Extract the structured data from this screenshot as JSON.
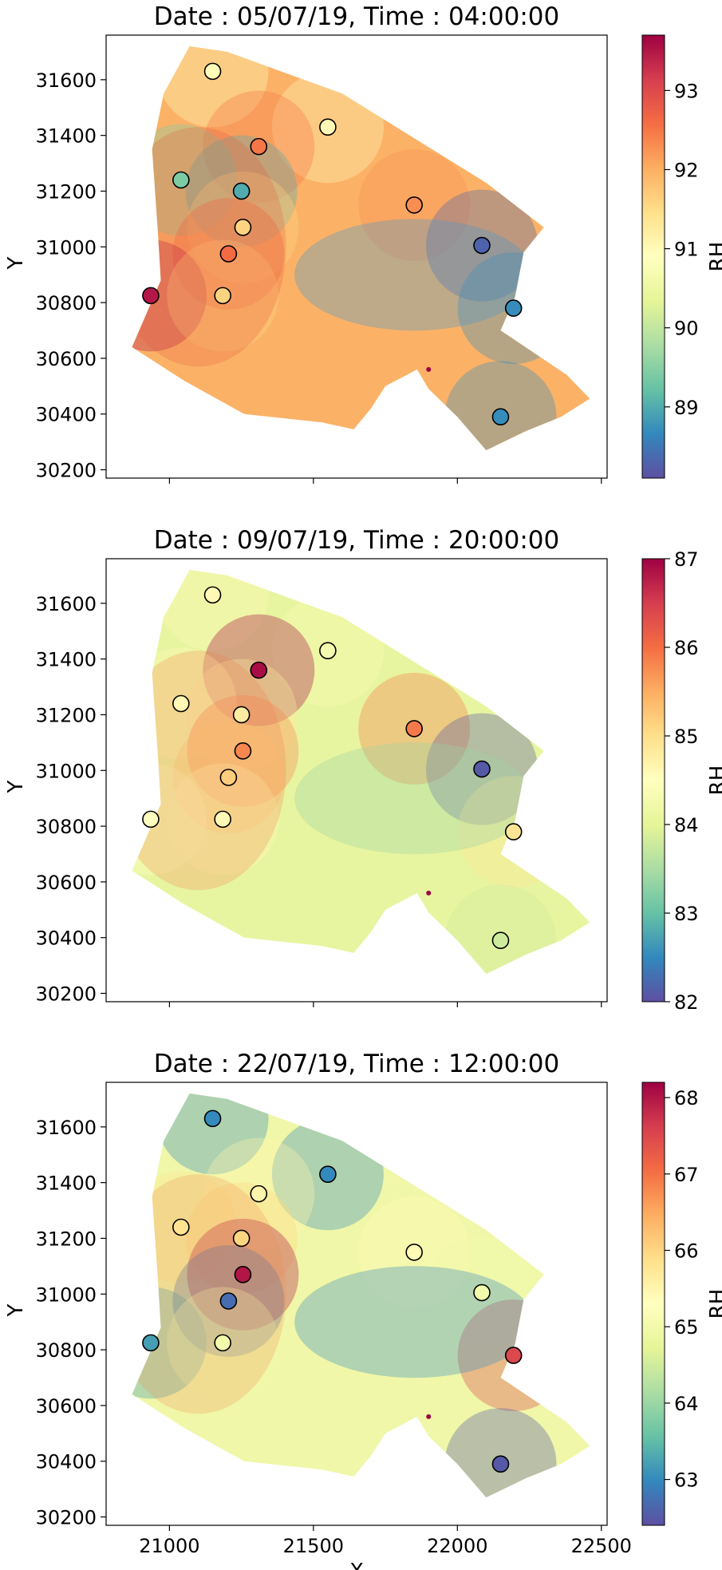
{
  "chart_data": [
    {
      "type": "heatmap",
      "title": "Date : 05/07/19, Time : 04:00:00",
      "xlabel": "",
      "ylabel": "Y",
      "colorbar_label": "RH",
      "xlim": [
        20780,
        22520
      ],
      "ylim": [
        30170,
        31760
      ],
      "xticks": [
        21000,
        21500,
        22000,
        22500
      ],
      "xticklabels_shown": false,
      "yticks": [
        30200,
        30400,
        30600,
        30800,
        31000,
        31200,
        31400,
        31600
      ],
      "clim": [
        88.1,
        93.7
      ],
      "cticks": [
        89,
        90,
        91,
        92,
        93
      ],
      "field_colors": {
        "low_region": "#4e97c9",
        "high_region": "#e8593c",
        "base": "#fbb267"
      },
      "points": [
        {
          "x": 21150,
          "y": 31630,
          "v": 90.8
        },
        {
          "x": 21550,
          "y": 31430,
          "v": 91.0
        },
        {
          "x": 21310,
          "y": 31360,
          "v": 92.5
        },
        {
          "x": 21040,
          "y": 31240,
          "v": 89.4
        },
        {
          "x": 21250,
          "y": 31200,
          "v": 89.0
        },
        {
          "x": 21850,
          "y": 31150,
          "v": 92.3
        },
        {
          "x": 21255,
          "y": 31070,
          "v": 91.6
        },
        {
          "x": 21205,
          "y": 30975,
          "v": 92.6
        },
        {
          "x": 22085,
          "y": 31005,
          "v": 88.3
        },
        {
          "x": 20935,
          "y": 30825,
          "v": 93.5
        },
        {
          "x": 21185,
          "y": 30825,
          "v": 91.6
        },
        {
          "x": 22195,
          "y": 30780,
          "v": 88.7
        },
        {
          "x": 22150,
          "y": 30390,
          "v": 88.7
        }
      ]
    },
    {
      "type": "heatmap",
      "title": "Date : 09/07/19, Time : 20:00:00",
      "xlabel": "",
      "ylabel": "Y",
      "colorbar_label": "RH",
      "xlim": [
        20780,
        22520
      ],
      "ylim": [
        30170,
        31760
      ],
      "xticks": [
        21000,
        21500,
        22000,
        22500
      ],
      "xticklabels_shown": false,
      "yticks": [
        30200,
        30400,
        30600,
        30800,
        31000,
        31200,
        31400,
        31600
      ],
      "clim": [
        82.0,
        87.0
      ],
      "cticks": [
        82,
        83,
        84,
        85,
        86,
        87
      ],
      "field_colors": {
        "low_region": "#9fd4a4",
        "high_region": "#f57a4a",
        "base": "#e8f5a0"
      },
      "points": [
        {
          "x": 21150,
          "y": 31630,
          "v": 84.6
        },
        {
          "x": 21550,
          "y": 31430,
          "v": 84.3
        },
        {
          "x": 21310,
          "y": 31360,
          "v": 86.9
        },
        {
          "x": 21040,
          "y": 31240,
          "v": 84.6
        },
        {
          "x": 21250,
          "y": 31200,
          "v": 84.8
        },
        {
          "x": 21850,
          "y": 31150,
          "v": 85.9
        },
        {
          "x": 21255,
          "y": 31070,
          "v": 85.8
        },
        {
          "x": 21205,
          "y": 30975,
          "v": 85.2
        },
        {
          "x": 22085,
          "y": 31005,
          "v": 82.1
        },
        {
          "x": 20935,
          "y": 30825,
          "v": 84.5
        },
        {
          "x": 21185,
          "y": 30825,
          "v": 84.6
        },
        {
          "x": 22195,
          "y": 30780,
          "v": 84.9
        },
        {
          "x": 22150,
          "y": 30390,
          "v": 83.8
        }
      ]
    },
    {
      "type": "heatmap",
      "title": "Date : 22/07/19, Time : 12:00:00",
      "xlabel": "X",
      "ylabel": "Y",
      "colorbar_label": "RH",
      "xlim": [
        20780,
        22520
      ],
      "ylim": [
        30170,
        31760
      ],
      "xticks": [
        21000,
        21500,
        22000,
        22500
      ],
      "xticklabels_shown": true,
      "yticks": [
        30200,
        30400,
        30600,
        30800,
        31000,
        31200,
        31400,
        31600
      ],
      "clim": [
        62.4,
        68.2
      ],
      "cticks": [
        63,
        64,
        65,
        66,
        67,
        68
      ],
      "field_colors": {
        "low_region": "#3d8fc4",
        "high_region": "#f08a50",
        "base": "#f0f7a8"
      },
      "points": [
        {
          "x": 21150,
          "y": 31630,
          "v": 63.0
        },
        {
          "x": 21550,
          "y": 31430,
          "v": 63.0
        },
        {
          "x": 21310,
          "y": 31360,
          "v": 65.5
        },
        {
          "x": 21040,
          "y": 31240,
          "v": 65.8
        },
        {
          "x": 21250,
          "y": 31200,
          "v": 66.0
        },
        {
          "x": 21850,
          "y": 31150,
          "v": 65.4
        },
        {
          "x": 21255,
          "y": 31070,
          "v": 68.0
        },
        {
          "x": 21205,
          "y": 30975,
          "v": 62.7
        },
        {
          "x": 22085,
          "y": 31005,
          "v": 65.0
        },
        {
          "x": 20935,
          "y": 30825,
          "v": 63.2
        },
        {
          "x": 21185,
          "y": 30825,
          "v": 65.0
        },
        {
          "x": 22195,
          "y": 30780,
          "v": 67.5
        },
        {
          "x": 22150,
          "y": 30390,
          "v": 62.5
        }
      ]
    }
  ]
}
